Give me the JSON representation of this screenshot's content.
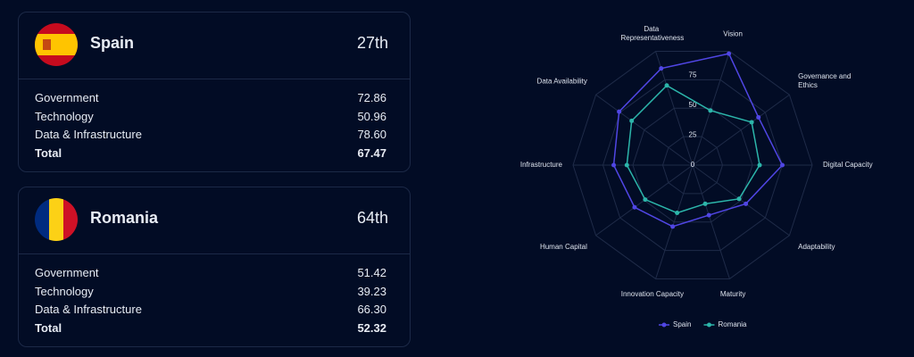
{
  "cards": [
    {
      "country": "Spain",
      "rank": "27th",
      "rows": [
        {
          "label": "Government",
          "value": "72.86"
        },
        {
          "label": "Technology",
          "value": "50.96"
        },
        {
          "label": "Data & Infrastructure",
          "value": "78.60"
        },
        {
          "label": "Total",
          "value": "67.47"
        }
      ]
    },
    {
      "country": "Romania",
      "rank": "64th",
      "rows": [
        {
          "label": "Government",
          "value": "51.42"
        },
        {
          "label": "Technology",
          "value": "39.23"
        },
        {
          "label": "Data & Infrastructure",
          "value": "66.30"
        },
        {
          "label": "Total",
          "value": "52.32"
        }
      ]
    }
  ],
  "chart_data": {
    "type": "radar",
    "categories": [
      "Vision",
      "Governance and Ethics",
      "Digital Capacity",
      "Adaptability",
      "Maturity",
      "Innovation Capacity",
      "Human Capital",
      "Infrastructure",
      "Data Availability",
      "Data Representativeness"
    ],
    "series": [
      {
        "name": "Spain",
        "color": "#5046e4",
        "values": [
          98,
          68,
          75,
          55,
          44,
          54,
          60,
          66,
          76,
          85
        ]
      },
      {
        "name": "Romania",
        "color": "#2cb5aa",
        "values": [
          48,
          61,
          56,
          48,
          34,
          42,
          49,
          55,
          63,
          70
        ]
      }
    ],
    "rlim": [
      0,
      100
    ],
    "rticks": [
      0,
      25,
      50,
      75
    ],
    "grid": true,
    "legend": "bottom"
  }
}
